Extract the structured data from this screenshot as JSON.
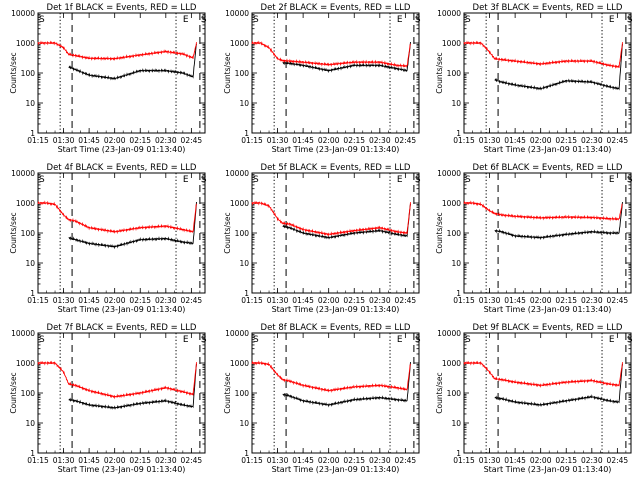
{
  "figure": {
    "x_tick_labels": [
      "01:15",
      "01:30",
      "01:45",
      "02:00",
      "02:15",
      "02:30",
      "02:45"
    ],
    "x_label": "Start Time (23-Jan-09 01:13:40)",
    "y_label": "Counts/sec",
    "y_tick_labels": [
      "1",
      "10",
      "100",
      "1000",
      "10000"
    ],
    "event_markers": [
      "S",
      "E",
      "S"
    ]
  },
  "chart_data": [
    {
      "type": "line",
      "title": "Det 1f BLACK = Events, RED = LLD",
      "xlabel": "Start Time (23-Jan-09 01:13:40)",
      "ylabel": "Counts/sec",
      "yscale": "log",
      "ylim": [
        1,
        10000
      ],
      "xlim": [
        "01:15",
        "02:53"
      ],
      "x": [
        "01:15",
        "01:20",
        "01:25",
        "01:30",
        "01:33",
        "01:37",
        "01:45",
        "02:00",
        "02:15",
        "02:30",
        "02:40",
        "02:46",
        "02:48"
      ],
      "series": [
        {
          "name": "Events",
          "color": "#000000",
          "values": [
            null,
            null,
            null,
            null,
            160,
            130,
            85,
            65,
            120,
            120,
            100,
            75,
            1000
          ]
        },
        {
          "name": "LLD",
          "color": "#ff0000",
          "values": [
            1000,
            1000,
            1000,
            700,
            420,
            380,
            310,
            300,
            400,
            520,
            430,
            320,
            1000
          ]
        }
      ]
    },
    {
      "type": "line",
      "title": "Det 2f BLACK = Events, RED = LLD",
      "xlabel": "Start Time (23-Jan-09 01:13:40)",
      "ylabel": "Counts/sec",
      "yscale": "log",
      "ylim": [
        1,
        10000
      ],
      "xlim": [
        "01:15",
        "02:53"
      ],
      "x": [
        "01:15",
        "01:20",
        "01:25",
        "01:30",
        "01:33",
        "01:37",
        "01:45",
        "02:00",
        "02:15",
        "02:30",
        "02:40",
        "02:46",
        "02:48"
      ],
      "series": [
        {
          "name": "Events",
          "color": "#000000",
          "values": [
            null,
            null,
            null,
            null,
            220,
            210,
            180,
            120,
            180,
            180,
            140,
            120,
            1000
          ]
        },
        {
          "name": "LLD",
          "color": "#ff0000",
          "values": [
            1000,
            1000,
            700,
            300,
            260,
            250,
            230,
            190,
            230,
            230,
            180,
            170,
            1000
          ]
        }
      ]
    },
    {
      "type": "line",
      "title": "Det 3f BLACK = Events, RED = LLD",
      "xlabel": "Start Time (23-Jan-09 01:13:40)",
      "ylabel": "Counts/sec",
      "yscale": "log",
      "ylim": [
        1,
        10000
      ],
      "xlim": [
        "01:15",
        "02:53"
      ],
      "x": [
        "01:15",
        "01:20",
        "01:25",
        "01:30",
        "01:33",
        "01:37",
        "01:45",
        "02:00",
        "02:15",
        "02:30",
        "02:40",
        "02:46",
        "02:48"
      ],
      "series": [
        {
          "name": "Events",
          "color": "#000000",
          "values": [
            null,
            null,
            null,
            null,
            60,
            50,
            40,
            30,
            55,
            50,
            35,
            30,
            1000
          ]
        },
        {
          "name": "LLD",
          "color": "#ff0000",
          "values": [
            1000,
            1000,
            1000,
            500,
            300,
            280,
            250,
            200,
            250,
            250,
            180,
            160,
            1000
          ]
        }
      ]
    },
    {
      "type": "line",
      "title": "Det 4f BLACK = Events, RED = LLD",
      "xlabel": "Start Time (23-Jan-09 01:13:40)",
      "ylabel": "Counts/sec",
      "yscale": "log",
      "ylim": [
        1,
        10000
      ],
      "xlim": [
        "01:15",
        "02:53"
      ],
      "x": [
        "01:15",
        "01:20",
        "01:25",
        "01:30",
        "01:33",
        "01:37",
        "01:45",
        "02:00",
        "02:15",
        "02:30",
        "02:40",
        "02:46",
        "02:48"
      ],
      "series": [
        {
          "name": "Events",
          "color": "#000000",
          "values": [
            null,
            null,
            null,
            null,
            70,
            60,
            45,
            35,
            60,
            65,
            50,
            45,
            1000
          ]
        },
        {
          "name": "LLD",
          "color": "#ff0000",
          "values": [
            1000,
            1000,
            900,
            400,
            280,
            250,
            150,
            110,
            150,
            170,
            130,
            110,
            1000
          ]
        }
      ]
    },
    {
      "type": "line",
      "title": "Det 5f BLACK = Events, RED = LLD",
      "xlabel": "Start Time (23-Jan-09 01:13:40)",
      "ylabel": "Counts/sec",
      "yscale": "log",
      "ylim": [
        1,
        10000
      ],
      "xlim": [
        "01:15",
        "02:53"
      ],
      "x": [
        "01:15",
        "01:20",
        "01:25",
        "01:30",
        "01:33",
        "01:37",
        "01:45",
        "02:00",
        "02:15",
        "02:30",
        "02:40",
        "02:46",
        "02:48"
      ],
      "series": [
        {
          "name": "Events",
          "color": "#000000",
          "values": [
            null,
            null,
            null,
            null,
            170,
            150,
            100,
            70,
            100,
            120,
            90,
            80,
            1000
          ]
        },
        {
          "name": "LLD",
          "color": "#ff0000",
          "values": [
            1000,
            1000,
            800,
            300,
            210,
            200,
            130,
            90,
            120,
            150,
            110,
            100,
            1000
          ]
        }
      ]
    },
    {
      "type": "line",
      "title": "Det 6f BLACK = Events, RED = LLD",
      "xlabel": "Start Time (23-Jan-09 01:13:40)",
      "ylabel": "Counts/sec",
      "yscale": "log",
      "ylim": [
        1,
        10000
      ],
      "xlim": [
        "01:15",
        "02:53"
      ],
      "x": [
        "01:15",
        "01:20",
        "01:25",
        "01:30",
        "01:33",
        "01:37",
        "01:45",
        "02:00",
        "02:15",
        "02:30",
        "02:40",
        "02:46",
        "02:48"
      ],
      "series": [
        {
          "name": "Events",
          "color": "#000000",
          "values": [
            null,
            null,
            null,
            null,
            120,
            110,
            80,
            70,
            90,
            110,
            100,
            100,
            1000
          ]
        },
        {
          "name": "LLD",
          "color": "#ff0000",
          "values": [
            1000,
            1000,
            900,
            550,
            450,
            400,
            360,
            320,
            340,
            330,
            300,
            290,
            1000
          ]
        }
      ]
    },
    {
      "type": "line",
      "title": "Det 7f BLACK = Events, RED = LLD",
      "xlabel": "Start Time (23-Jan-09 01:13:40)",
      "ylabel": "Counts/sec",
      "yscale": "log",
      "ylim": [
        1,
        10000
      ],
      "xlim": [
        "01:15",
        "02:53"
      ],
      "x": [
        "01:15",
        "01:20",
        "01:25",
        "01:30",
        "01:33",
        "01:37",
        "01:45",
        "02:00",
        "02:15",
        "02:30",
        "02:40",
        "02:46",
        "02:48"
      ],
      "series": [
        {
          "name": "Events",
          "color": "#000000",
          "values": [
            null,
            null,
            null,
            null,
            60,
            55,
            40,
            32,
            45,
            55,
            40,
            35,
            1000
          ]
        },
        {
          "name": "LLD",
          "color": "#ff0000",
          "values": [
            1000,
            1000,
            1000,
            500,
            200,
            180,
            120,
            75,
            100,
            150,
            110,
            90,
            1000
          ]
        }
      ]
    },
    {
      "type": "line",
      "title": "Det 8f BLACK = Events, RED = LLD",
      "xlabel": "Start Time (23-Jan-09 01:13:40)",
      "ylabel": "Counts/sec",
      "yscale": "log",
      "ylim": [
        1,
        10000
      ],
      "xlim": [
        "01:15",
        "02:53"
      ],
      "x": [
        "01:15",
        "01:20",
        "01:25",
        "01:30",
        "01:33",
        "01:37",
        "01:45",
        "02:00",
        "02:15",
        "02:30",
        "02:40",
        "02:46",
        "02:48"
      ],
      "series": [
        {
          "name": "Events",
          "color": "#000000",
          "values": [
            null,
            null,
            null,
            null,
            90,
            80,
            55,
            40,
            60,
            70,
            60,
            55,
            1000
          ]
        },
        {
          "name": "LLD",
          "color": "#ff0000",
          "values": [
            1000,
            1000,
            900,
            400,
            280,
            250,
            180,
            120,
            160,
            180,
            150,
            130,
            1000
          ]
        }
      ]
    },
    {
      "type": "line",
      "title": "Det 9f BLACK = Events, RED = LLD",
      "xlabel": "Start Time (23-Jan-09 01:13:40)",
      "ylabel": "Counts/sec",
      "yscale": "log",
      "ylim": [
        1,
        10000
      ],
      "xlim": [
        "01:15",
        "02:53"
      ],
      "x": [
        "01:15",
        "01:20",
        "01:25",
        "01:30",
        "01:33",
        "01:37",
        "01:45",
        "02:00",
        "02:15",
        "02:30",
        "02:40",
        "02:46",
        "02:48"
      ],
      "series": [
        {
          "name": "Events",
          "color": "#000000",
          "values": [
            null,
            null,
            null,
            null,
            70,
            65,
            50,
            40,
            55,
            75,
            55,
            50,
            1000
          ]
        },
        {
          "name": "LLD",
          "color": "#ff0000",
          "values": [
            1000,
            1000,
            1000,
            500,
            300,
            280,
            230,
            180,
            230,
            260,
            200,
            180,
            1000
          ]
        }
      ]
    }
  ]
}
